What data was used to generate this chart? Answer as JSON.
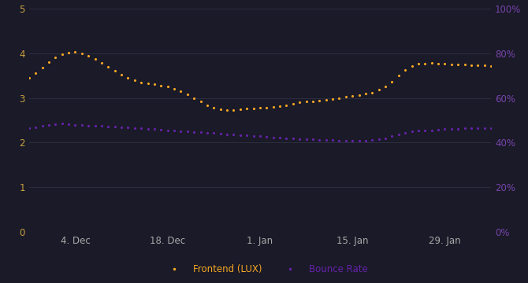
{
  "background_color": "#1a1a28",
  "plot_bg_color": "#1a1a28",
  "grid_color": "#2e2e42",
  "tick_label_color_left": "#c8a040",
  "tick_label_color_right": "#7744aa",
  "ylim_left": [
    0,
    5
  ],
  "ylim_right": [
    0,
    1
  ],
  "yticks_left": [
    0,
    1,
    2,
    3,
    4,
    5
  ],
  "yticks_right": [
    0.0,
    0.2,
    0.4,
    0.6,
    0.8,
    1.0
  ],
  "xtick_labels": [
    "4. Dec",
    "18. Dec",
    "1. Jan",
    "15. Jan",
    "29. Jan"
  ],
  "frontend_color": "#f5a623",
  "bounce_color": "#6622aa",
  "legend_frontend": "Frontend (LUX)",
  "legend_bounce": "Bounce Rate",
  "frontend_x": [
    0,
    1,
    2,
    3,
    4,
    5,
    6,
    7,
    8,
    9,
    10,
    11,
    12,
    13,
    14,
    15,
    16,
    17,
    18,
    19,
    20,
    21,
    22,
    23,
    24,
    25,
    26,
    27,
    28,
    29,
    30,
    31,
    32,
    33,
    34,
    35,
    36,
    37,
    38,
    39,
    40,
    41,
    42,
    43,
    44,
    45,
    46,
    47,
    48,
    49,
    50,
    51,
    52,
    53,
    54,
    55,
    56,
    57,
    58,
    59,
    60,
    61,
    62,
    63,
    64,
    65,
    66,
    67,
    68,
    69,
    70
  ],
  "frontend_y": [
    3.45,
    3.55,
    3.68,
    3.8,
    3.9,
    3.97,
    4.02,
    4.03,
    4.0,
    3.95,
    3.87,
    3.78,
    3.69,
    3.6,
    3.52,
    3.45,
    3.39,
    3.35,
    3.32,
    3.3,
    3.28,
    3.25,
    3.2,
    3.15,
    3.08,
    3.0,
    2.92,
    2.84,
    2.78,
    2.74,
    2.72,
    2.73,
    2.75,
    2.76,
    2.77,
    2.78,
    2.79,
    2.8,
    2.82,
    2.84,
    2.87,
    2.9,
    2.92,
    2.93,
    2.94,
    2.96,
    2.98,
    3.0,
    3.02,
    3.04,
    3.06,
    3.09,
    3.12,
    3.18,
    3.26,
    3.36,
    3.5,
    3.63,
    3.72,
    3.76,
    3.77,
    3.78,
    3.77,
    3.76,
    3.75,
    3.74,
    3.74,
    3.73,
    3.73,
    3.73,
    3.72
  ],
  "bounce_x": [
    0,
    1,
    2,
    3,
    4,
    5,
    6,
    7,
    8,
    9,
    10,
    11,
    12,
    13,
    14,
    15,
    16,
    17,
    18,
    19,
    20,
    21,
    22,
    23,
    24,
    25,
    26,
    27,
    28,
    29,
    30,
    31,
    32,
    33,
    34,
    35,
    36,
    37,
    38,
    39,
    40,
    41,
    42,
    43,
    44,
    45,
    46,
    47,
    48,
    49,
    50,
    51,
    52,
    53,
    54,
    55,
    56,
    57,
    58,
    59,
    60,
    61,
    62,
    63,
    64,
    65,
    66,
    67,
    68,
    69,
    70
  ],
  "bounce_y": [
    0.465,
    0.47,
    0.475,
    0.48,
    0.483,
    0.485,
    0.483,
    0.48,
    0.478,
    0.476,
    0.475,
    0.474,
    0.472,
    0.471,
    0.47,
    0.468,
    0.466,
    0.464,
    0.462,
    0.46,
    0.458,
    0.456,
    0.454,
    0.452,
    0.45,
    0.448,
    0.446,
    0.444,
    0.442,
    0.44,
    0.438,
    0.436,
    0.434,
    0.432,
    0.43,
    0.428,
    0.426,
    0.424,
    0.422,
    0.42,
    0.418,
    0.416,
    0.415,
    0.414,
    0.413,
    0.412,
    0.411,
    0.41,
    0.41,
    0.409,
    0.409,
    0.41,
    0.412,
    0.415,
    0.42,
    0.428,
    0.436,
    0.444,
    0.45,
    0.453,
    0.455,
    0.456,
    0.458,
    0.46,
    0.462,
    0.463,
    0.464,
    0.464,
    0.465,
    0.465,
    0.466
  ],
  "xtick_positions": [
    7,
    21,
    35,
    49,
    63
  ],
  "figsize": [
    6.7,
    3.6
  ],
  "dpi": 100
}
